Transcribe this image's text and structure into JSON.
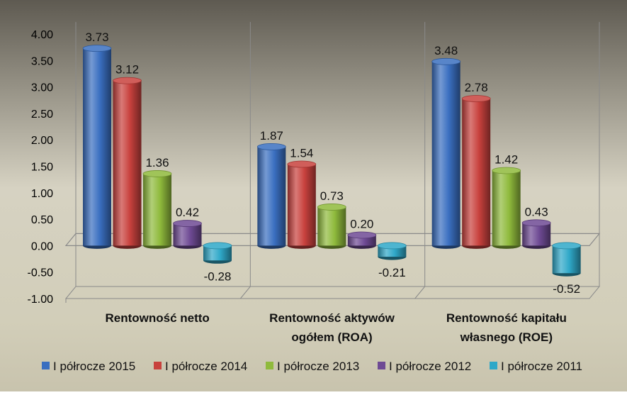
{
  "chart_data": {
    "type": "bar",
    "categories": [
      [
        "Rentowność netto"
      ],
      [
        "Rentowność aktywów",
        "ogółem (ROA)"
      ],
      [
        "Rentowność kapitału",
        "własnego (ROE)"
      ]
    ],
    "series": [
      {
        "name": "I półrocze 2015",
        "color": "#3a6fc0",
        "values": [
          3.73,
          1.87,
          3.48
        ]
      },
      {
        "name": "I półrocze 2014",
        "color": "#c8413d",
        "values": [
          3.12,
          1.54,
          2.78
        ]
      },
      {
        "name": "I półrocze 2013",
        "color": "#8fba3c",
        "values": [
          1.36,
          0.73,
          1.42
        ]
      },
      {
        "name": "I półrocze 2012",
        "color": "#6e4a94",
        "values": [
          0.42,
          0.2,
          0.43
        ]
      },
      {
        "name": "I półrocze 2011",
        "color": "#2fa8c8",
        "values": [
          -0.28,
          -0.21,
          -0.52
        ]
      }
    ],
    "value_labels": [
      [
        "3.73",
        "3.12",
        "1.36",
        "0.42",
        "-0.28"
      ],
      [
        "1.87",
        "1.54",
        "0.73",
        "0.20",
        "-0.21"
      ],
      [
        "3.48",
        "2.78",
        "1.42",
        "0.43",
        "-0.52"
      ]
    ],
    "y_ticks": [
      "4.00",
      "3.50",
      "3.00",
      "2.50",
      "2.00",
      "1.50",
      "1.00",
      "0.50",
      "0.00",
      "-0.50",
      "-1.00"
    ],
    "ylim": [
      -1,
      4
    ],
    "title": "",
    "xlabel": "",
    "ylabel": "",
    "legend_position": "bottom",
    "grid": false
  }
}
